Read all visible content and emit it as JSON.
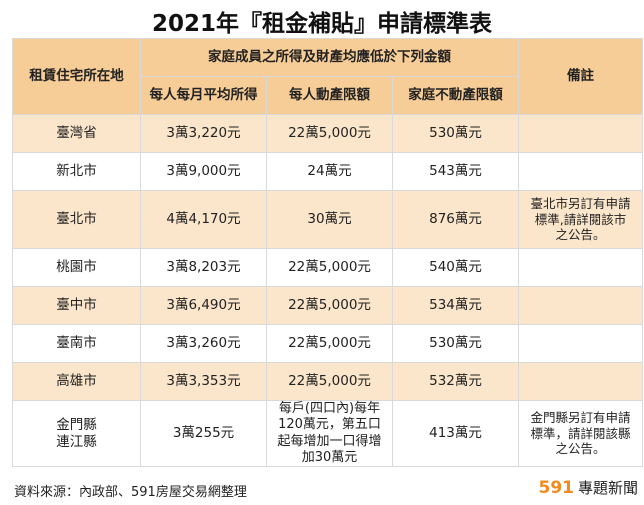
{
  "title": "2021年『租金補貼』申請標準表",
  "headers": {
    "location": "租賃住宅所在地",
    "group": "家庭成員之所得及財產均應低於下列金額",
    "income": "每人每月平均所得",
    "movable": "每人動產限額",
    "real_estate": "家庭不動產限額",
    "notes": "備註"
  },
  "rows": [
    {
      "location": [
        "臺灣省"
      ],
      "income": "3萬3,220元",
      "movable": [
        "22萬5,000元"
      ],
      "real_estate": "530萬元",
      "notes": []
    },
    {
      "location": [
        "新北市"
      ],
      "income": "3萬9,000元",
      "movable": [
        "24萬元"
      ],
      "real_estate": "543萬元",
      "notes": []
    },
    {
      "location": [
        "臺北市"
      ],
      "income": "4萬4,170元",
      "movable": [
        "30萬元"
      ],
      "real_estate": "876萬元",
      "notes": [
        "臺北市另訂有申請",
        "標準,請詳閱該市",
        "之公告。"
      ]
    },
    {
      "location": [
        "桃園市"
      ],
      "income": "3萬8,203元",
      "movable": [
        "22萬5,000元"
      ],
      "real_estate": "540萬元",
      "notes": []
    },
    {
      "location": [
        "臺中市"
      ],
      "income": "3萬6,490元",
      "movable": [
        "22萬5,000元"
      ],
      "real_estate": "534萬元",
      "notes": []
    },
    {
      "location": [
        "臺南市"
      ],
      "income": "3萬3,260元",
      "movable": [
        "22萬5,000元"
      ],
      "real_estate": "530萬元",
      "notes": []
    },
    {
      "location": [
        "高雄市"
      ],
      "income": "3萬3,353元",
      "movable": [
        "22萬5,000元"
      ],
      "real_estate": "532萬元",
      "notes": []
    },
    {
      "location": [
        "金門縣",
        "連江縣"
      ],
      "income": "3萬255元",
      "movable": [
        "每戶(四口內)每年",
        "120萬元，第五口",
        "起每增加一口得增",
        "加30萬元"
      ],
      "real_estate": "413萬元",
      "notes": [
        "金門縣另訂有申請",
        "標準，請詳閱該縣",
        "之公告。"
      ]
    }
  ],
  "footer": {
    "source": "資料來源：內政部、591房屋交易網整理",
    "brand_number": "591",
    "brand_text": "專題新聞"
  }
}
